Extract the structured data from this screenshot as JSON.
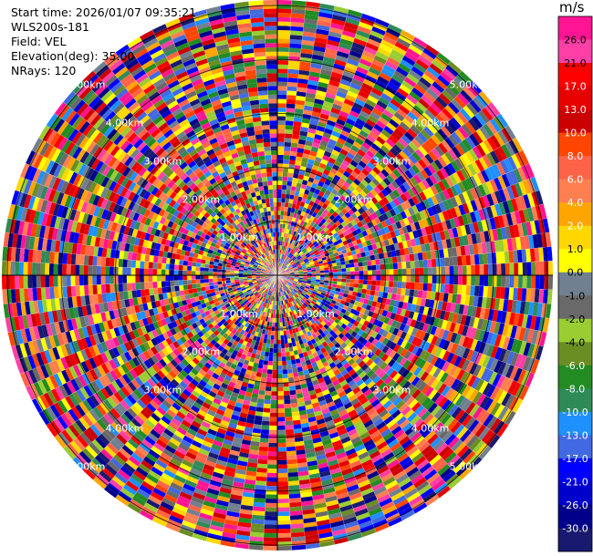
{
  "header": {
    "start_time": "Start time: 2026/01/07 09:35:21",
    "instrument": "WLS200s-181",
    "field": "Field: VEL",
    "elevation": "Elevation(deg): 35.00",
    "nrays": "NRays: 120"
  },
  "chart_data": {
    "type": "heatmap",
    "subtype": "polar-ppi",
    "field": "VEL",
    "units": "m/s",
    "n_rays": 120,
    "range_rings_km": [
      1.0,
      2.0,
      3.0,
      4.0,
      5.0
    ],
    "ring_labels": [
      "1.00km",
      "2.00km",
      "3.00km",
      "4.00km",
      "5.00km"
    ],
    "max_range_km": 5.1,
    "velocity_range": [
      -30.0,
      30.0
    ],
    "colorbar": {
      "title": "m/s",
      "ticks": [
        "26.0",
        "21.0",
        "17.0",
        "13.0",
        "10.0",
        "8.0",
        "6.0",
        "4.0",
        "2.0",
        "1.0",
        "0.0",
        "-1.0",
        "-2.0",
        "-4.0",
        "-6.0",
        "-8.0",
        "-10.0",
        "-13.0",
        "-17.0",
        "-21.0",
        "-26.0",
        "-30.0"
      ],
      "colors": [
        "#ff1493",
        "#ff3fa5",
        "#ff0000",
        "#e60000",
        "#cc0000",
        "#ff4500",
        "#ff6347",
        "#ff7f50",
        "#ffa500",
        "#ffd700",
        "#ffff00",
        "#708090",
        "#696969",
        "#9acd32",
        "#6b8e23",
        "#228b22",
        "#2e8b57",
        "#1e90ff",
        "#4169e1",
        "#0000ff",
        "#0000cd",
        "#00008b",
        "#191970"
      ],
      "dark_label_indices": [
        0,
        1,
        9,
        10,
        11,
        12,
        13
      ]
    }
  }
}
